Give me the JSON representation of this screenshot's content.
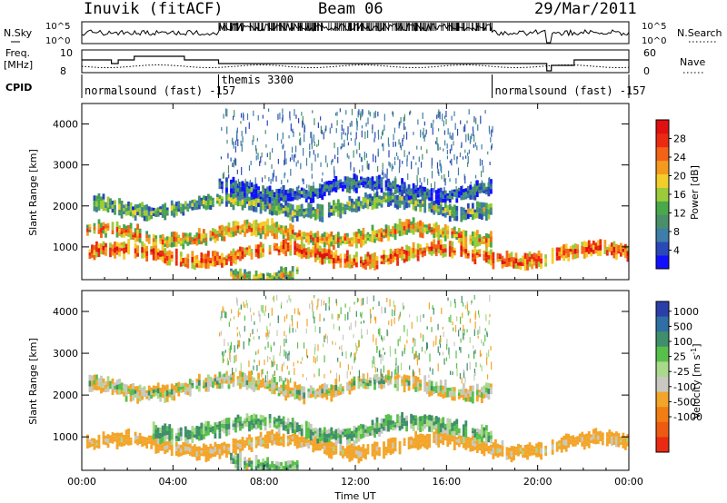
{
  "header": {
    "station": "Inuvik (fitACF)",
    "beam": "Beam 06",
    "date": "29/Mar/2011"
  },
  "top_panels": {
    "nsky_label": "N.Sky",
    "nsky_ticks": [
      "10^5",
      "10^0"
    ],
    "nsearch_label": "N.Search",
    "nsearch_ticks": [
      "10^5",
      "10^0"
    ],
    "freq_label_1": "Freq.",
    "freq_label_2": "[MHz]",
    "freq_ticks": [
      "10",
      "8"
    ],
    "nave_label": "Nave",
    "nave_ticks": [
      "60",
      "0"
    ],
    "cpid_label": "CPID",
    "cpid_segments": [
      {
        "label": "normalsound (fast) -157",
        "start_h": 0,
        "end_h": 6
      },
      {
        "label": "themis 3300",
        "start_h": 6,
        "end_h": 18
      },
      {
        "label": "normalsound (fast) -157",
        "start_h": 18,
        "end_h": 24
      }
    ]
  },
  "colors": {
    "power": [
      "#1010ff",
      "#2a48b8",
      "#3e7ea8",
      "#4a8f6a",
      "#49a94a",
      "#9bcb3a",
      "#f3ce2a",
      "#f59a1e",
      "#f26315",
      "#ec2a12",
      "#e01010"
    ],
    "velocity": [
      "#2a3fa8",
      "#2f6fa6",
      "#3f8f6a",
      "#58c04a",
      "#a9d98a",
      "#c8c8c0",
      "#f3a52a",
      "#f27d12",
      "#ef5a12",
      "#ea2a12"
    ],
    "frame": "#000000"
  },
  "chart_data": [
    {
      "type": "heatmap",
      "name": "Power",
      "ylabel": "Slant Range [km]",
      "xlim_hours": [
        0,
        24
      ],
      "ylim": [
        200,
        4500
      ],
      "yticks": [
        "1000",
        "2000",
        "3000",
        "4000"
      ],
      "colorbar": {
        "label": "Power [dB]",
        "ticks": [
          "4",
          "8",
          "12",
          "16",
          "20",
          "24",
          "28"
        ],
        "range": [
          0,
          32
        ]
      },
      "layers": [
        {
          "range_km": 800,
          "value_db": 26,
          "t_start_h": 0.2,
          "t_end_h": 24
        },
        {
          "range_km": 1300,
          "value_db": 22,
          "t_start_h": 0.2,
          "t_end_h": 18
        },
        {
          "range_km": 2000,
          "value_db": 14,
          "t_start_h": 0.5,
          "t_end_h": 18
        },
        {
          "range_km": 2400,
          "value_db": 8,
          "t_start_h": 6,
          "t_end_h": 18
        },
        {
          "range_km": 400,
          "value_db": 18,
          "t_start_h": 6.5,
          "t_end_h": 9.5
        }
      ],
      "data_gaps_h": [
        [
          20.4,
          20.6
        ]
      ]
    },
    {
      "type": "heatmap",
      "name": "Velocity",
      "ylabel": "Slant Range [km]",
      "xlim_hours": [
        0,
        24
      ],
      "ylim": [
        200,
        4500
      ],
      "yticks": [
        "1000",
        "2000",
        "3000",
        "4000"
      ],
      "xticks": [
        "00:00",
        "04:00",
        "08:00",
        "12:00",
        "16:00",
        "20:00",
        "00:00"
      ],
      "xlabel": "Time UT",
      "colorbar": {
        "label": "Velocity [m s^-1]",
        "ticks": [
          "1000",
          "500",
          "100",
          "25",
          "-25",
          "-100",
          "-500",
          "-1000"
        ]
      },
      "layers": [
        {
          "range_km": 800,
          "value_ms": -150,
          "t_start_h": 0.2,
          "t_end_h": 24
        },
        {
          "range_km": 1200,
          "value_ms": 150,
          "t_start_h": 3,
          "t_end_h": 18
        },
        {
          "range_km": 2200,
          "value_ms": 0,
          "t_start_h": 0.3,
          "t_end_h": 18
        },
        {
          "range_km": 400,
          "value_ms": 120,
          "t_start_h": 6.5,
          "t_end_h": 9.5
        }
      ],
      "data_gaps_h": [
        [
          20.4,
          20.6
        ]
      ]
    }
  ]
}
